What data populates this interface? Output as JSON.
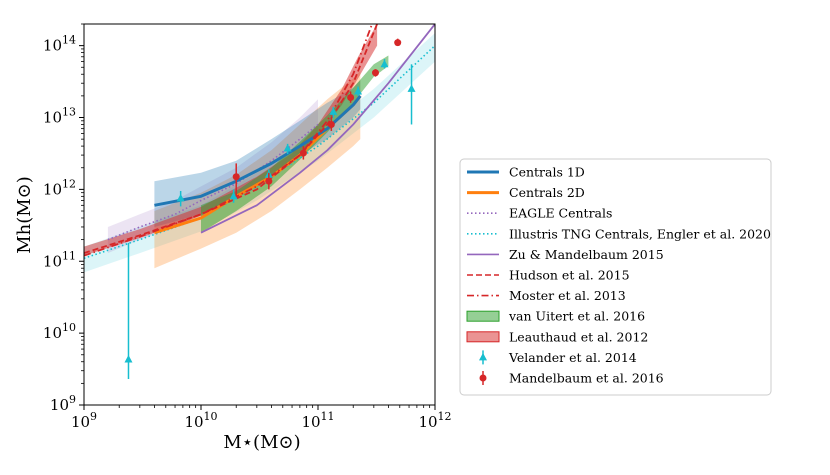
{
  "chart_data": {
    "type": "line",
    "xlabel": "M⋆(M⊙)",
    "ylabel": "Mh(M⊙)",
    "xscale": "log",
    "yscale": "log",
    "xlim": [
      1000000000.0,
      1000000000000.0
    ],
    "ylim": [
      1000000000.0,
      200000000000000.0
    ],
    "x_ticks": [
      {
        "value": 1000000000.0,
        "base": "10",
        "exp": "9"
      },
      {
        "value": 10000000000.0,
        "base": "10",
        "exp": "10"
      },
      {
        "value": 100000000000.0,
        "base": "10",
        "exp": "11"
      },
      {
        "value": 1000000000000.0,
        "base": "10",
        "exp": "12"
      }
    ],
    "y_ticks": [
      {
        "value": 1000000000.0,
        "base": "10",
        "exp": "9"
      },
      {
        "value": 10000000000.0,
        "base": "10",
        "exp": "10"
      },
      {
        "value": 100000000000.0,
        "base": "10",
        "exp": "11"
      },
      {
        "value": 1000000000000.0,
        "base": "10",
        "exp": "12"
      },
      {
        "value": 10000000000000.0,
        "base": "10",
        "exp": "13"
      },
      {
        "value": 100000000000000.0,
        "base": "10",
        "exp": "14"
      }
    ],
    "grid": false,
    "legend_position": "right",
    "series": [
      {
        "name": "Centrals 1D",
        "kind": "line",
        "color": "#1f77b4",
        "dash": "solid",
        "x": [
          4000000000.0,
          10000000000.0,
          20000000000.0,
          40000000000.0,
          70000000000.0,
          120000000000.0,
          200000000000.0,
          230000000000.0
        ],
        "y": [
          600000000000.0,
          800000000000.0,
          1300000000000.0,
          2300000000000.0,
          4000000000000.0,
          7000000000000.0,
          15000000000000.0,
          20000000000000.0
        ],
        "band_lower": [
          300000000000.0,
          450000000000.0,
          800000000000.0,
          1500000000000.0,
          3000000000000.0,
          5000000000000.0,
          10000000000000.0,
          13000000000000.0
        ],
        "band_upper": [
          1300000000000.0,
          1700000000000.0,
          2500000000000.0,
          5000000000000.0,
          9000000000000.0,
          16000000000000.0,
          26000000000000.0,
          33000000000000.0
        ]
      },
      {
        "name": "Centrals 2D",
        "kind": "line",
        "color": "#ff7f0e",
        "dash": "solid",
        "x": [
          4000000000.0,
          10000000000.0,
          20000000000.0,
          40000000000.0,
          70000000000.0,
          120000000000.0,
          200000000000.0,
          230000000000.0
        ],
        "y": [
          250000000000.0,
          400000000000.0,
          800000000000.0,
          1500000000000.0,
          3000000000000.0,
          7000000000000.0,
          15000000000000.0,
          20000000000000.0
        ],
        "band_lower": [
          80000000000.0,
          150000000000.0,
          250000000000.0,
          500000000000.0,
          1000000000000.0,
          2000000000000.0,
          4000000000000.0,
          5000000000000.0
        ],
        "band_upper": [
          500000000000.0,
          900000000000.0,
          1600000000000.0,
          3500000000000.0,
          8000000000000.0,
          18000000000000.0,
          35000000000000.0,
          45000000000000.0
        ]
      },
      {
        "name": "EAGLE Centrals",
        "kind": "line",
        "color": "#9467bd",
        "dash": "dotted",
        "x": [
          1600000000.0,
          3000000000.0,
          6000000000.0,
          10000000000.0,
          20000000000.0,
          40000000000.0,
          70000000000.0,
          100000000000.0
        ],
        "y": [
          200000000000.0,
          300000000000.0,
          450000000000.0,
          700000000000.0,
          1200000000000.0,
          2500000000000.0,
          5000000000000.0,
          8000000000000.0
        ],
        "band_lower": [
          130000000000.0,
          200000000000.0,
          300000000000.0,
          450000000000.0,
          800000000000.0,
          1500000000000.0,
          3000000000000.0,
          5000000000000.0
        ],
        "band_upper": [
          300000000000.0,
          450000000000.0,
          700000000000.0,
          1100000000000.0,
          2000000000000.0,
          4500000000000.0,
          10000000000000.0,
          18000000000000.0
        ]
      },
      {
        "name": "Illustris TNG Centrals,  Engler et al. 2020",
        "kind": "line",
        "color": "#17becf",
        "dash": "dotted",
        "x": [
          1000000000.0,
          3000000000.0,
          10000000000.0,
          30000000000.0,
          100000000000.0,
          300000000000.0,
          1000000000000.0
        ],
        "y": [
          110000000000.0,
          200000000000.0,
          400000000000.0,
          1100000000000.0,
          4000000000000.0,
          16000000000000.0,
          100000000000000.0
        ],
        "band_lower": [
          70000000000.0,
          130000000000.0,
          260000000000.0,
          700000000000.0,
          2500000000000.0,
          10000000000000.0,
          60000000000000.0
        ],
        "band_upper": [
          160000000000.0,
          300000000000.0,
          600000000000.0,
          1700000000000.0,
          6000000000000.0,
          25000000000000.0,
          150000000000000.0
        ]
      },
      {
        "name": "Zu & Mandelbaum 2015",
        "kind": "line",
        "color": "#9467bd",
        "dash": "solid",
        "x": [
          10000000000.0,
          30000000000.0,
          70000000000.0,
          120000000000.0,
          200000000000.0,
          400000000000.0,
          1000000000000.0
        ],
        "y": [
          250000000000.0,
          600000000000.0,
          1700000000000.0,
          3500000000000.0,
          8000000000000.0,
          30000000000000.0,
          200000000000000.0
        ]
      },
      {
        "name": "Hudson et al. 2015",
        "kind": "line",
        "color": "#d62728",
        "dash": "dashed",
        "x": [
          1000000000.0,
          3000000000.0,
          10000000000.0,
          30000000000.0,
          70000000000.0,
          120000000000.0,
          200000000000.0,
          320000000000.0
        ],
        "y": [
          130000000000.0,
          230000000000.0,
          450000000000.0,
          1000000000000.0,
          3000000000000.0,
          8000000000000.0,
          30000000000000.0,
          200000000000000.0
        ]
      },
      {
        "name": "Moster et al. 2013",
        "kind": "line",
        "color": "#d62728",
        "dash": "dashdot",
        "x": [
          1000000000.0,
          3000000000.0,
          10000000000.0,
          30000000000.0,
          70000000000.0,
          120000000000.0,
          200000000000.0,
          290000000000.0
        ],
        "y": [
          120000000000.0,
          220000000000.0,
          450000000000.0,
          1100000000000.0,
          3000000000000.0,
          9000000000000.0,
          40000000000000.0,
          200000000000000.0
        ]
      },
      {
        "name": "van Uitert et al. 2016",
        "kind": "band",
        "color": "#2ca02c",
        "x": [
          10000000000.0,
          20000000000.0,
          40000000000.0,
          70000000000.0,
          120000000000.0,
          200000000000.0,
          300000000000.0,
          400000000000.0
        ],
        "band_lower": [
          250000000000.0,
          500000000000.0,
          1100000000000.0,
          2600000000000.0,
          6200000000000.0,
          16000000000000.0,
          37000000000000.0,
          52000000000000.0
        ],
        "band_upper": [
          600000000000.0,
          950000000000.0,
          2000000000000.0,
          4600000000000.0,
          10700000000000.0,
          26000000000000.0,
          55000000000000.0,
          73000000000000.0
        ]
      },
      {
        "name": "Leauthaud et al. 2012",
        "kind": "band",
        "color": "#d62728",
        "x": [
          1000000000.0,
          3000000000.0,
          10000000000.0,
          30000000000.0,
          60000000000.0,
          100000000000.0,
          160000000000.0,
          220000000000.0,
          320000000000.0
        ],
        "band_lower": [
          120000000000.0,
          210000000000.0,
          430000000000.0,
          1100000000000.0,
          2400000000000.0,
          5500000000000.0,
          15000000000000.0,
          35000000000000.0,
          100000000000000.0
        ],
        "band_upper": [
          160000000000.0,
          280000000000.0,
          570000000000.0,
          1500000000000.0,
          3200000000000.0,
          8000000000000.0,
          25000000000000.0,
          70000000000000.0,
          200000000000000.0
        ]
      },
      {
        "name": "Velander et al. 2014",
        "kind": "errorbar",
        "color": "#17becf",
        "marker": "triangle",
        "points": [
          {
            "x": 2400000000.0,
            "y": 4300000000.0,
            "lo": 2300000000.0,
            "hi": 180000000000.0
          },
          {
            "x": 6700000000.0,
            "y": 750000000000.0,
            "lo": 580000000000.0,
            "hi": 950000000000.0
          },
          {
            "x": 19000000000.0,
            "y": 800000000000.0,
            "lo": 650000000000.0,
            "hi": 1000000000000.0
          },
          {
            "x": 38000000000.0,
            "y": 1600000000000.0,
            "lo": 1300000000000.0,
            "hi": 1900000000000.0
          },
          {
            "x": 55000000000.0,
            "y": 3700000000000.0,
            "lo": 3100000000000.0,
            "hi": 4300000000000.0
          },
          {
            "x": 135000000000.0,
            "y": 12000000000000.0,
            "lo": 10000000000000.0,
            "hi": 14000000000000.0
          },
          {
            "x": 220000000000.0,
            "y": 23000000000000.0,
            "lo": 20000000000000.0,
            "hi": 27000000000000.0
          },
          {
            "x": 370000000000.0,
            "y": 55000000000000.0,
            "lo": 48000000000000.0,
            "hi": 65000000000000.0
          },
          {
            "x": 630000000000.0,
            "y": 25000000000000.0,
            "lo": 8000000000000.0,
            "hi": 55000000000000.0
          }
        ]
      },
      {
        "name": "Mandelbaum et al. 2016",
        "kind": "errorbar",
        "color": "#d62728",
        "marker": "circle",
        "points": [
          {
            "x": 20000000000.0,
            "y": 1500000000000.0,
            "lo": 800000000000.0,
            "hi": 2300000000000.0
          },
          {
            "x": 38000000000.0,
            "y": 1300000000000.0,
            "lo": 1000000000000.0,
            "hi": 1700000000000.0
          },
          {
            "x": 75000000000.0,
            "y": 3200000000000.0,
            "lo": 2600000000000.0,
            "hi": 4000000000000.0
          },
          {
            "x": 130000000000.0,
            "y": 8000000000000.0,
            "lo": 6500000000000.0,
            "hi": 10000000000000.0
          },
          {
            "x": 190000000000.0,
            "y": 19000000000000.0,
            "lo": 16000000000000.0,
            "hi": 23000000000000.0
          },
          {
            "x": 310000000000.0,
            "y": 42000000000000.0,
            "lo": 37000000000000.0,
            "hi": 47000000000000.0
          },
          {
            "x": 480000000000.0,
            "y": 110000000000000.0,
            "lo": 100000000000000.0,
            "hi": 125000000000000.0
          }
        ]
      }
    ]
  }
}
